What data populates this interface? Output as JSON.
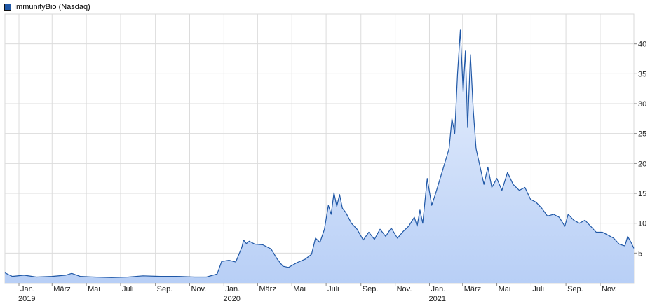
{
  "legend": {
    "label": "ImmunityBio (Nasdaq)"
  },
  "chart_data": {
    "type": "area",
    "series": [
      {
        "name": "ImmunityBio (Nasdaq)",
        "color": "#1f57a6",
        "fill_top": "#eaf1fd",
        "fill_bottom": "#b8cff6"
      }
    ],
    "x_range": [
      "2018-12-07",
      "2021-12-31"
    ],
    "ylim": [
      0,
      45
    ],
    "y_ticks": [
      5,
      10,
      15,
      20,
      25,
      30,
      35,
      40
    ],
    "grid": true,
    "legend_position": "top-left",
    "x_ticks": [
      {
        "date": "2019-01-01",
        "label": "Jan.",
        "year": "2019"
      },
      {
        "date": "2019-03-01",
        "label": "März",
        "year": ""
      },
      {
        "date": "2019-05-01",
        "label": "Mai",
        "year": ""
      },
      {
        "date": "2019-07-01",
        "label": "Juli",
        "year": ""
      },
      {
        "date": "2019-09-01",
        "label": "Sep.",
        "year": ""
      },
      {
        "date": "2019-11-01",
        "label": "Nov.",
        "year": ""
      },
      {
        "date": "2020-01-01",
        "label": "Jan.",
        "year": "2020"
      },
      {
        "date": "2020-03-01",
        "label": "März",
        "year": ""
      },
      {
        "date": "2020-05-01",
        "label": "Mai",
        "year": ""
      },
      {
        "date": "2020-07-01",
        "label": "Juli",
        "year": ""
      },
      {
        "date": "2020-09-01",
        "label": "Sep.",
        "year": ""
      },
      {
        "date": "2020-11-01",
        "label": "Nov.",
        "year": ""
      },
      {
        "date": "2021-01-01",
        "label": "Jan.",
        "year": "2021"
      },
      {
        "date": "2021-03-01",
        "label": "März",
        "year": ""
      },
      {
        "date": "2021-05-01",
        "label": "Mai",
        "year": ""
      },
      {
        "date": "2021-07-01",
        "label": "Juli",
        "year": ""
      },
      {
        "date": "2021-09-01",
        "label": "Sep.",
        "year": ""
      },
      {
        "date": "2021-11-01",
        "label": "Nov.",
        "year": ""
      }
    ],
    "points": [
      [
        "2018-12-07",
        1.7
      ],
      [
        "2018-12-20",
        1.1
      ],
      [
        "2019-01-10",
        1.3
      ],
      [
        "2019-02-01",
        1.0
      ],
      [
        "2019-03-01",
        1.1
      ],
      [
        "2019-03-25",
        1.3
      ],
      [
        "2019-04-05",
        1.6
      ],
      [
        "2019-04-20",
        1.1
      ],
      [
        "2019-05-15",
        1.0
      ],
      [
        "2019-06-15",
        0.9
      ],
      [
        "2019-07-15",
        1.0
      ],
      [
        "2019-08-10",
        1.2
      ],
      [
        "2019-09-10",
        1.1
      ],
      [
        "2019-10-10",
        1.1
      ],
      [
        "2019-11-10",
        1.0
      ],
      [
        "2019-12-01",
        1.0
      ],
      [
        "2019-12-20",
        1.5
      ],
      [
        "2019-12-28",
        3.6
      ],
      [
        "2020-01-10",
        3.8
      ],
      [
        "2020-01-22",
        3.5
      ],
      [
        "2020-02-02",
        6.0
      ],
      [
        "2020-02-05",
        7.2
      ],
      [
        "2020-02-10",
        6.6
      ],
      [
        "2020-02-15",
        7.0
      ],
      [
        "2020-02-25",
        6.5
      ],
      [
        "2020-03-10",
        6.4
      ],
      [
        "2020-03-25",
        5.7
      ],
      [
        "2020-04-05",
        4.0
      ],
      [
        "2020-04-15",
        2.8
      ],
      [
        "2020-04-25",
        2.6
      ],
      [
        "2020-05-10",
        3.4
      ],
      [
        "2020-05-25",
        4.0
      ],
      [
        "2020-06-05",
        4.8
      ],
      [
        "2020-06-12",
        7.5
      ],
      [
        "2020-06-20",
        6.8
      ],
      [
        "2020-06-28",
        9.0
      ],
      [
        "2020-07-05",
        13.0
      ],
      [
        "2020-07-10",
        11.5
      ],
      [
        "2020-07-15",
        15.1
      ],
      [
        "2020-07-20",
        12.8
      ],
      [
        "2020-07-25",
        14.8
      ],
      [
        "2020-07-30",
        12.5
      ],
      [
        "2020-08-05",
        11.8
      ],
      [
        "2020-08-15",
        10.0
      ],
      [
        "2020-08-25",
        9.0
      ],
      [
        "2020-09-05",
        7.2
      ],
      [
        "2020-09-15",
        8.5
      ],
      [
        "2020-09-25",
        7.3
      ],
      [
        "2020-10-05",
        9.0
      ],
      [
        "2020-10-15",
        7.8
      ],
      [
        "2020-10-25",
        9.2
      ],
      [
        "2020-11-05",
        7.5
      ],
      [
        "2020-11-15",
        8.6
      ],
      [
        "2020-11-25",
        9.5
      ],
      [
        "2020-12-05",
        11.0
      ],
      [
        "2020-12-10",
        9.5
      ],
      [
        "2020-12-15",
        12.2
      ],
      [
        "2020-12-20",
        10.0
      ],
      [
        "2020-12-28",
        17.5
      ],
      [
        "2021-01-05",
        13.0
      ],
      [
        "2021-01-12",
        15.0
      ],
      [
        "2021-01-20",
        17.5
      ],
      [
        "2021-01-28",
        20.0
      ],
      [
        "2021-02-05",
        22.5
      ],
      [
        "2021-02-10",
        27.5
      ],
      [
        "2021-02-15",
        25.0
      ],
      [
        "2021-02-20",
        35.0
      ],
      [
        "2021-02-25",
        42.3
      ],
      [
        "2021-03-02",
        32.0
      ],
      [
        "2021-03-06",
        38.8
      ],
      [
        "2021-03-10",
        26.0
      ],
      [
        "2021-03-15",
        38.2
      ],
      [
        "2021-03-20",
        29.0
      ],
      [
        "2021-03-25",
        22.5
      ],
      [
        "2021-04-01",
        19.5
      ],
      [
        "2021-04-08",
        16.5
      ],
      [
        "2021-04-15",
        19.4
      ],
      [
        "2021-04-22",
        16.0
      ],
      [
        "2021-05-01",
        17.5
      ],
      [
        "2021-05-10",
        15.5
      ],
      [
        "2021-05-20",
        18.5
      ],
      [
        "2021-05-30",
        16.5
      ],
      [
        "2021-06-10",
        15.5
      ],
      [
        "2021-06-20",
        16.0
      ],
      [
        "2021-06-30",
        14.0
      ],
      [
        "2021-07-10",
        13.5
      ],
      [
        "2021-07-20",
        12.5
      ],
      [
        "2021-07-30",
        11.2
      ],
      [
        "2021-08-10",
        11.5
      ],
      [
        "2021-08-20",
        11.0
      ],
      [
        "2021-08-30",
        9.5
      ],
      [
        "2021-09-05",
        11.5
      ],
      [
        "2021-09-15",
        10.5
      ],
      [
        "2021-09-25",
        10.0
      ],
      [
        "2021-10-05",
        10.5
      ],
      [
        "2021-10-15",
        9.5
      ],
      [
        "2021-10-25",
        8.5
      ],
      [
        "2021-11-05",
        8.5
      ],
      [
        "2021-11-15",
        8.0
      ],
      [
        "2021-11-25",
        7.5
      ],
      [
        "2021-12-05",
        6.5
      ],
      [
        "2021-12-15",
        6.2
      ],
      [
        "2021-12-20",
        7.8
      ],
      [
        "2021-12-26",
        6.8
      ],
      [
        "2021-12-31",
        5.8
      ]
    ]
  }
}
